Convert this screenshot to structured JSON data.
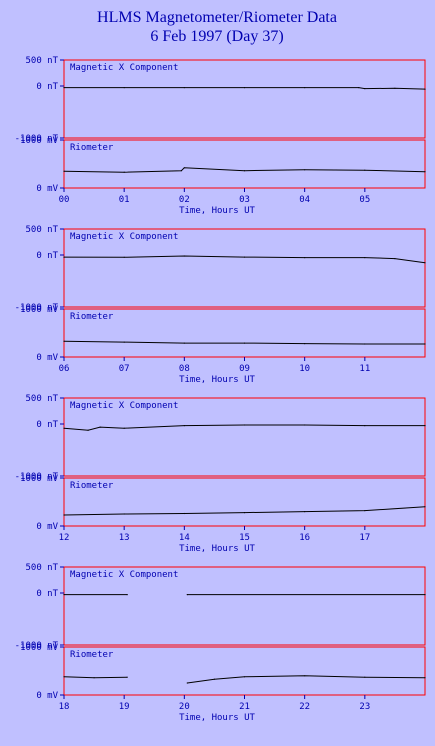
{
  "title": "HLMS Magnetometer/Riometer Data",
  "subtitle": "6 Feb 1997 (Day 37)",
  "colors": {
    "background": "#c0c0ff",
    "frame": "#ff0000",
    "text": "#0000b0",
    "trace": "#000000"
  },
  "chart_data": [
    {
      "type": "line",
      "xlabel": "Time, Hours UT",
      "xticks": [
        "00",
        "01",
        "02",
        "03",
        "04",
        "05"
      ],
      "xlim": [
        0,
        6
      ],
      "panels": [
        {
          "label": "Magnetic X Component",
          "unit": "nT",
          "yticks": [
            "500 nT",
            "0 nT",
            "-1000 nT"
          ],
          "ylim": [
            -1000,
            500
          ],
          "x": [
            0,
            1,
            2,
            3,
            4,
            4.9,
            5,
            5.5,
            6
          ],
          "y": [
            -30,
            -30,
            -30,
            -30,
            -30,
            -30,
            -50,
            -45,
            -60
          ]
        },
        {
          "label": "Riometer",
          "unit": "mV",
          "yticks": [
            "1000 mV",
            "0 mV"
          ],
          "ylim": [
            0,
            1000
          ],
          "x": [
            0,
            1,
            1.95,
            2,
            3,
            4,
            5,
            6
          ],
          "y": [
            350,
            330,
            360,
            420,
            360,
            380,
            370,
            340
          ]
        }
      ]
    },
    {
      "type": "line",
      "xlabel": "Time, Hours UT",
      "xticks": [
        "06",
        "07",
        "08",
        "09",
        "10",
        "11"
      ],
      "xlim": [
        6,
        12
      ],
      "panels": [
        {
          "label": "Magnetic X Component",
          "unit": "nT",
          "yticks": [
            "500 nT",
            "0 nT",
            "-1000 nT"
          ],
          "ylim": [
            -1000,
            500
          ],
          "x": [
            6,
            7,
            8,
            9,
            10,
            11,
            11.5,
            12
          ],
          "y": [
            -40,
            -45,
            -20,
            -40,
            -50,
            -50,
            -70,
            -150
          ]
        },
        {
          "label": "Riometer",
          "unit": "mV",
          "yticks": [
            "1000 mV",
            "0 mV"
          ],
          "ylim": [
            0,
            1000
          ],
          "x": [
            6,
            7,
            8,
            9,
            10,
            11,
            12
          ],
          "y": [
            330,
            310,
            290,
            290,
            280,
            270,
            270
          ]
        }
      ]
    },
    {
      "type": "line",
      "xlabel": "Time, Hours UT",
      "xticks": [
        "12",
        "13",
        "14",
        "15",
        "16",
        "17"
      ],
      "xlim": [
        12,
        18
      ],
      "panels": [
        {
          "label": "Magnetic X Component",
          "unit": "nT",
          "yticks": [
            "500 nT",
            "0 nT",
            "-1000 nT"
          ],
          "ylim": [
            -1000,
            500
          ],
          "x": [
            12,
            12.4,
            12.6,
            13,
            14,
            15,
            16,
            17,
            18
          ],
          "y": [
            -80,
            -120,
            -60,
            -80,
            -30,
            -20,
            -20,
            -30,
            -30
          ]
        },
        {
          "label": "Riometer",
          "unit": "mV",
          "yticks": [
            "1000 mV",
            "0 mV"
          ],
          "ylim": [
            0,
            1000
          ],
          "x": [
            12,
            13,
            14,
            15,
            16,
            17,
            18
          ],
          "y": [
            230,
            250,
            260,
            280,
            300,
            320,
            400
          ]
        }
      ]
    },
    {
      "type": "line",
      "xlabel": "Time, Hours UT",
      "xticks": [
        "18",
        "19",
        "20",
        "21",
        "22",
        "23"
      ],
      "xlim": [
        18,
        24
      ],
      "panels": [
        {
          "label": "Magnetic X Component",
          "unit": "nT",
          "yticks": [
            "500 nT",
            "0 nT",
            "-1000 nT"
          ],
          "ylim": [
            -1000,
            500
          ],
          "segments": [
            {
              "x": [
                18,
                19.05
              ],
              "y": [
                -30,
                -30
              ]
            },
            {
              "x": [
                20.05,
                24
              ],
              "y": [
                -30,
                -30
              ]
            }
          ]
        },
        {
          "label": "Riometer",
          "unit": "mV",
          "yticks": [
            "1000 mV",
            "0 mV"
          ],
          "ylim": [
            0,
            1000
          ],
          "segments": [
            {
              "x": [
                18,
                18.5,
                19.05
              ],
              "y": [
                380,
                360,
                370
              ]
            },
            {
              "x": [
                20.05,
                20.5,
                21,
                22,
                23,
                24
              ],
              "y": [
                250,
                330,
                380,
                400,
                370,
                360
              ]
            }
          ]
        }
      ]
    }
  ]
}
